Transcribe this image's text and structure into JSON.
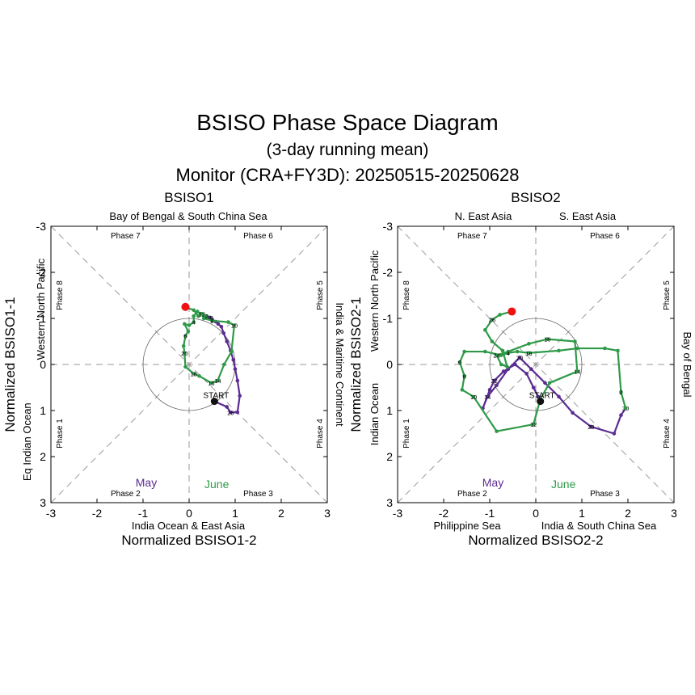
{
  "title": "BSISO Phase Space Diagram",
  "subtitle": "(3-day running mean)",
  "period": "Monitor (CRA+FY3D): 20250515-20250628",
  "colors": {
    "may": "#5a2d91",
    "june": "#2e9a48",
    "end": "#ee1111",
    "start": "#111111"
  },
  "legend": {
    "may": "May",
    "june": "June"
  },
  "start_label": "START",
  "chart_data": [
    {
      "type": "scatter",
      "name": "BSISO1",
      "xlabel": "Normalized BSISO1-2",
      "ylabel": "Normalized BSISO1-1",
      "xlim": [
        -3,
        3
      ],
      "ylim": [
        -3,
        3
      ],
      "y_axis": "inverted",
      "ticks": [
        "-3",
        "-2",
        "-1",
        "0",
        "1",
        "2",
        "3"
      ],
      "regions": {
        "top": [
          "Bay of Bengal & South China Sea"
        ],
        "bottom": [
          "India Ocean & East Asia"
        ],
        "left": [
          "Western North Pacific",
          "Eq Indian Ocean"
        ],
        "right": [
          "India & Maritime Continent"
        ]
      },
      "phases": [
        "Phase 1",
        "Phase 2",
        "Phase 3",
        "Phase 4",
        "Phase 5",
        "Phase 6",
        "Phase 7",
        "Phase 8"
      ],
      "series": [
        {
          "name": "May",
          "color": "#5a2d91",
          "points": [
            [
              0.55,
              0.8
            ],
            [
              0.82,
              0.92
            ],
            [
              0.9,
              1.04
            ],
            [
              1.05,
              1.04
            ],
            [
              1.1,
              0.68
            ],
            [
              1.05,
              0.35
            ],
            [
              1.0,
              0.1
            ],
            [
              0.96,
              -0.1
            ],
            [
              0.9,
              -0.3
            ],
            [
              0.82,
              -0.5
            ],
            [
              0.75,
              -0.68
            ],
            [
              0.7,
              -0.82
            ],
            [
              0.63,
              -0.88
            ],
            [
              0.58,
              -0.93
            ],
            [
              0.5,
              -0.98
            ],
            [
              0.45,
              -1.02
            ],
            [
              0.38,
              -1.05
            ]
          ],
          "labels": {
            "2": "26",
            "15": "28"
          }
        },
        {
          "name": "June",
          "color": "#2e9a48",
          "points": [
            [
              0.38,
              -1.05
            ],
            [
              0.25,
              -1.1
            ],
            [
              0.18,
              -1.15
            ],
            [
              0.1,
              -1.05
            ],
            [
              0.1,
              -0.92
            ],
            [
              0.0,
              -0.85
            ],
            [
              -0.1,
              -0.88
            ],
            [
              -0.02,
              -0.72
            ],
            [
              -0.08,
              -0.62
            ],
            [
              -0.12,
              -0.4
            ],
            [
              -0.1,
              -0.25
            ],
            [
              -0.08,
              0.05
            ],
            [
              0.1,
              0.2
            ],
            [
              0.22,
              0.25
            ],
            [
              0.48,
              0.4
            ],
            [
              0.62,
              0.35
            ],
            [
              0.76,
              0.0
            ],
            [
              0.92,
              -0.28
            ],
            [
              0.98,
              -0.85
            ],
            [
              0.85,
              -0.92
            ],
            [
              0.5,
              -0.95
            ],
            [
              0.32,
              -1.0
            ],
            [
              0.28,
              -1.1
            ],
            [
              0.2,
              -1.05
            ],
            [
              0.1,
              -1.18
            ],
            [
              -0.08,
              -1.25
            ]
          ],
          "labels": {
            "0": "2",
            "4": "4",
            "8": "6",
            "10": "20",
            "12": "18",
            "15": "14",
            "14": "16",
            "18": "10",
            "20": "8",
            "22": "12",
            "25": "28"
          }
        }
      ]
    },
    {
      "type": "scatter",
      "name": "BSISO2",
      "xlabel": "Normalized BSISO2-2",
      "ylabel": "Normalized BSISO2-1",
      "xlim": [
        -3,
        3
      ],
      "ylim": [
        -3,
        3
      ],
      "y_axis": "inverted",
      "ticks": [
        "-3",
        "-2",
        "-1",
        "0",
        "1",
        "2",
        "3"
      ],
      "regions": {
        "top": [
          "N. East Asia",
          "S. East Asia"
        ],
        "bottom": [
          "Philippine Sea",
          "India & South China Sea"
        ],
        "left": [
          "Western North Pacific",
          "Indian Ocean"
        ],
        "right": [
          "Bay of Bengal"
        ]
      },
      "phases": [
        "Phase 1",
        "Phase 2",
        "Phase 3",
        "Phase 4",
        "Phase 5",
        "Phase 6",
        "Phase 7",
        "Phase 8"
      ],
      "series": [
        {
          "name": "May",
          "color": "#5a2d91",
          "points": [
            [
              0.1,
              0.8
            ],
            [
              0.05,
              0.7
            ],
            [
              -0.05,
              0.5
            ],
            [
              -0.2,
              0.2
            ],
            [
              -0.45,
              0.0
            ],
            [
              -0.7,
              0.15
            ],
            [
              -0.9,
              0.35
            ],
            [
              -1.0,
              0.55
            ],
            [
              -1.15,
              0.95
            ],
            [
              -1.05,
              0.7
            ],
            [
              -0.85,
              0.45
            ],
            [
              -0.6,
              0.1
            ],
            [
              -0.35,
              -0.15
            ],
            [
              -0.1,
              0.1
            ],
            [
              0.2,
              0.4
            ],
            [
              0.5,
              0.7
            ],
            [
              0.8,
              1.05
            ],
            [
              1.2,
              1.35
            ],
            [
              1.7,
              1.5
            ],
            [
              1.85,
              1.1
            ],
            [
              1.95,
              0.95
            ]
          ],
          "labels": {
            "6": "22",
            "9": "14",
            "12": "20",
            "17": "28",
            "20": "30"
          }
        },
        {
          "name": "June",
          "color": "#2e9a48",
          "points": [
            [
              1.95,
              0.95
            ],
            [
              1.85,
              0.6
            ],
            [
              1.78,
              -0.3
            ],
            [
              1.5,
              -0.35
            ],
            [
              0.9,
              -0.35
            ],
            [
              0.5,
              -0.3
            ],
            [
              -0.15,
              -0.25
            ],
            [
              -0.4,
              -0.28
            ],
            [
              -0.6,
              -0.25
            ],
            [
              -0.75,
              -0.2
            ],
            [
              -1.1,
              -0.28
            ],
            [
              -1.55,
              -0.28
            ],
            [
              -1.65,
              -0.05
            ],
            [
              -1.55,
              0.25
            ],
            [
              -1.6,
              0.55
            ],
            [
              -1.35,
              0.7
            ],
            [
              -0.85,
              1.45
            ],
            [
              -0.05,
              1.3
            ],
            [
              0.1,
              0.75
            ],
            [
              0.3,
              0.4
            ],
            [
              0.9,
              0.15
            ],
            [
              0.85,
              -0.5
            ],
            [
              0.25,
              -0.55
            ],
            [
              -0.15,
              -0.45
            ],
            [
              -0.6,
              -0.28
            ],
            [
              -0.85,
              -0.2
            ],
            [
              -0.75,
              0.0
            ],
            [
              -0.62,
              0.05
            ],
            [
              -0.72,
              -0.3
            ],
            [
              -0.95,
              -0.5
            ],
            [
              -1.1,
              -0.75
            ],
            [
              -0.95,
              -0.97
            ],
            [
              -0.78,
              -1.08
            ],
            [
              -0.52,
              -1.15
            ]
          ],
          "labels": {
            "1": "2",
            "6": "18",
            "8": "4",
            "12": "6",
            "13": "8",
            "15": "10",
            "17": "12",
            "20": "14",
            "22": "16",
            "25": "24",
            "31": "26"
          }
        }
      ]
    }
  ]
}
